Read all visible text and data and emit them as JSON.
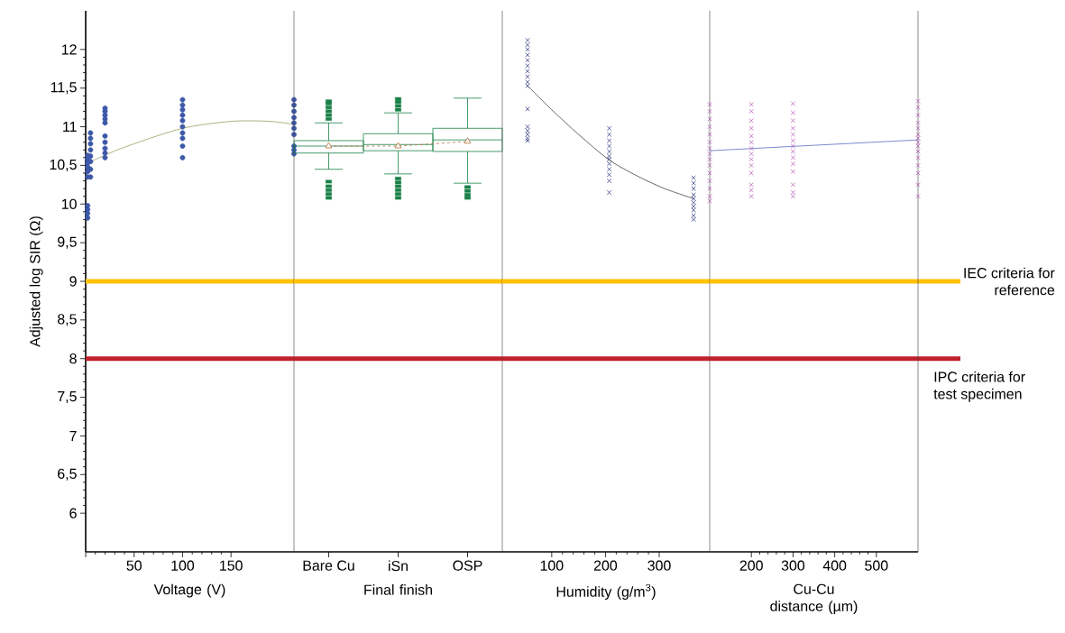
{
  "chart_data": [
    {
      "type": "scatter",
      "xlabel": "Voltage  (V)",
      "ylabel": "Adjusted log SIR  (Ω)",
      "xlim": [
        0,
        215
      ],
      "xticks": [
        {
          "value": 0,
          "label": null
        },
        50,
        100,
        150
      ],
      "ylim": [
        5.5,
        12.5
      ],
      "yticks": [
        6,
        {
          "value": 6.5,
          "label": "6,5"
        },
        7,
        {
          "value": 7.5,
          "label": "7,5"
        },
        8,
        {
          "value": 8.5,
          "label": "8,5"
        },
        9,
        {
          "value": 9.5,
          "label": "9,5"
        },
        10,
        {
          "value": 10.5,
          "label": "10,5"
        },
        11,
        {
          "value": 11.5,
          "label": "11,5"
        },
        12
      ],
      "series": [
        {
          "marker": "circle",
          "color": "#3c58a8",
          "x": [
            2,
            2,
            2,
            2,
            2,
            2,
            2,
            2,
            2,
            2,
            5,
            5,
            5,
            5,
            5,
            5,
            5,
            5,
            20,
            20,
            20,
            20,
            20,
            20,
            20,
            20,
            20,
            20,
            100,
            100,
            100,
            100,
            100,
            100,
            100,
            100,
            100,
            100,
            215,
            215,
            215,
            215,
            215,
            215,
            215,
            215,
            215,
            215
          ],
          "values": [
            9.82,
            9.88,
            9.93,
            9.98,
            10.35,
            10.42,
            10.48,
            10.53,
            10.58,
            10.63,
            10.35,
            10.45,
            10.55,
            10.62,
            10.7,
            10.78,
            10.85,
            10.92,
            10.6,
            10.66,
            10.72,
            10.8,
            10.88,
            11.05,
            11.1,
            11.15,
            11.2,
            11.24,
            10.6,
            10.75,
            10.85,
            10.92,
            11.0,
            11.08,
            11.15,
            11.22,
            11.28,
            11.35,
            10.65,
            10.7,
            10.75,
            10.9,
            10.98,
            11.05,
            11.12,
            11.2,
            11.28,
            11.35
          ]
        },
        {
          "type": "line",
          "marker": "none",
          "color": "#9a9a60",
          "x": [
            0,
            25,
            50,
            100,
            150,
            190,
            215
          ],
          "values": [
            10.52,
            10.66,
            10.78,
            10.98,
            11.07,
            11.07,
            11.03
          ]
        }
      ],
      "ref_lines": [
        {
          "axis": "y",
          "value": 9,
          "color": "#ffc000"
        },
        {
          "axis": "y",
          "value": 8,
          "color": "#c0202c"
        }
      ]
    },
    {
      "type": "box",
      "xlabel": "Final finish",
      "categories": [
        "Bare Cu",
        "iSn",
        "OSP"
      ],
      "ylim": [
        5.5,
        12.5
      ],
      "tick_labels": "x",
      "series": [
        {
          "color": "#1a8048",
          "boxes": [
            {
              "low": 10.45,
              "q1": 10.66,
              "median": 10.75,
              "q3": 10.82,
              "high": 11.05,
              "outliers": [
                11.1,
                11.15,
                11.2,
                11.25,
                11.3,
                11.33,
                10.08,
                10.13,
                10.18,
                10.23,
                10.29
              ]
            },
            {
              "low": 10.39,
              "q1": 10.69,
              "median": 10.77,
              "q3": 10.91,
              "high": 11.18,
              "outliers": [
                11.22,
                11.27,
                11.32,
                11.36,
                10.08,
                10.13,
                10.18,
                10.23,
                10.28,
                10.33
              ]
            },
            {
              "low": 10.27,
              "q1": 10.68,
              "median": 10.83,
              "q3": 10.98,
              "high": 11.37,
              "outliers": [
                10.08,
                10.12,
                10.17,
                10.22
              ]
            }
          ]
        },
        {
          "type": "line",
          "marker": "triangle",
          "line_style": "dashed",
          "color": "#b5703c",
          "values": [
            10.75,
            10.75,
            10.81
          ]
        }
      ],
      "ref_lines": [
        {
          "axis": "y",
          "value": 9,
          "color": "#ffc000"
        },
        {
          "axis": "y",
          "value": 8,
          "color": "#c0202c"
        }
      ]
    },
    {
      "type": "scatter",
      "xlabel": "Humidity  (g/m$^{3}$)",
      "xlim": [
        8,
        394
      ],
      "xticks": [
        100,
        200,
        300
      ],
      "ylim": [
        5.5,
        12.5
      ],
      "tick_labels": "x",
      "series": [
        {
          "marker": "cross",
          "color": "#1c2472",
          "x": [
            55,
            55,
            55,
            55,
            55,
            55,
            55,
            55,
            55,
            55,
            55,
            55,
            55,
            55,
            55,
            55,
            207,
            207,
            207,
            207,
            207,
            207,
            207,
            207,
            207,
            207,
            207,
            207,
            364,
            364,
            364,
            364,
            364,
            364,
            364,
            364,
            364,
            364
          ],
          "values": [
            12.12,
            12.06,
            12.0,
            11.93,
            11.86,
            11.79,
            11.72,
            11.65,
            11.58,
            11.53,
            11.23,
            11.0,
            10.95,
            10.9,
            10.85,
            10.82,
            10.98,
            10.9,
            10.82,
            10.75,
            10.68,
            10.62,
            10.58,
            10.52,
            10.45,
            10.38,
            10.3,
            10.15,
            10.34,
            10.27,
            10.2,
            10.12,
            10.07,
            10.02,
            9.97,
            9.92,
            9.85,
            9.8
          ]
        },
        {
          "type": "line",
          "marker": "none",
          "color": "#404040",
          "x": [
            55,
            100,
            150,
            207,
            260,
            310,
            364
          ],
          "values": [
            11.53,
            11.22,
            10.9,
            10.57,
            10.36,
            10.2,
            10.07
          ]
        }
      ],
      "ref_lines": [
        {
          "axis": "y",
          "value": 9,
          "color": "#ffc000"
        },
        {
          "axis": "y",
          "value": 8,
          "color": "#c0202c"
        }
      ]
    },
    {
      "type": "scatter",
      "xlabel": "Cu-Cu distance  (µm)",
      "xlim": [
        100,
        600
      ],
      "xticks": [
        200,
        300,
        400,
        500
      ],
      "ylim": [
        5.5,
        12.5
      ],
      "tick_labels": "x",
      "series": [
        {
          "marker": "cross",
          "color": "#b050b0",
          "x": [
            100,
            100,
            100,
            100,
            100,
            100,
            100,
            100,
            100,
            100,
            100,
            100,
            100,
            100,
            100,
            200,
            200,
            200,
            200,
            200,
            200,
            200,
            200,
            200,
            200,
            200,
            200,
            200,
            200,
            300,
            300,
            300,
            300,
            300,
            300,
            300,
            300,
            300,
            300,
            300,
            300,
            300,
            300,
            600,
            600,
            600,
            600,
            600,
            600,
            600,
            600,
            600,
            600,
            600,
            600,
            600,
            600,
            600
          ],
          "values": [
            11.29,
            11.2,
            11.1,
            11.0,
            10.9,
            10.8,
            10.72,
            10.65,
            10.58,
            10.5,
            10.4,
            10.3,
            10.2,
            10.1,
            10.04,
            11.29,
            11.2,
            11.08,
            10.98,
            10.88,
            10.8,
            10.72,
            10.65,
            10.58,
            10.5,
            10.4,
            10.25,
            10.18,
            10.1,
            11.3,
            11.18,
            11.08,
            10.98,
            10.9,
            10.82,
            10.75,
            10.68,
            10.6,
            10.52,
            10.42,
            10.25,
            10.15,
            10.1,
            11.33,
            11.25,
            11.15,
            11.05,
            10.98,
            10.9,
            10.85,
            10.8,
            10.75,
            10.68,
            10.6,
            10.5,
            10.4,
            10.25,
            10.1
          ]
        },
        {
          "type": "line",
          "marker": "none",
          "color": "#5a6ac0",
          "x": [
            100,
            600
          ],
          "values": [
            10.69,
            10.83
          ]
        }
      ],
      "ref_lines": [
        {
          "axis": "y",
          "value": 9,
          "color": "#ffc000",
          "label": "IEC criteria for reference"
        },
        {
          "axis": "y",
          "value": 8,
          "color": "#c0202c",
          "label": "IPC criteria for test specimen"
        }
      ]
    }
  ]
}
